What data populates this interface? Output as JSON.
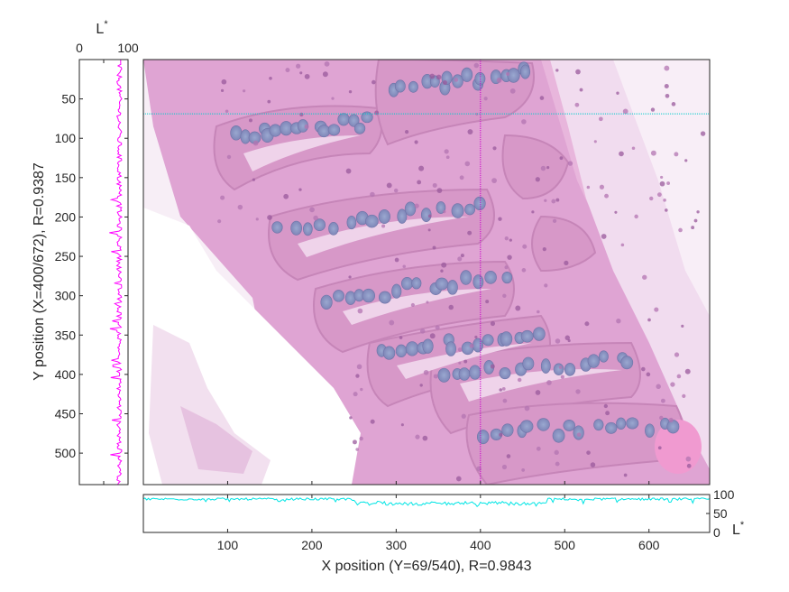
{
  "chart_data": [
    {
      "type": "image",
      "name": "main-image",
      "xlim": [
        0,
        672
      ],
      "ylim": [
        0,
        540
      ],
      "crosshair": {
        "x": 400,
        "y": 69
      },
      "colors": {
        "vertical": "#cc00cc",
        "horizontal": "#00cccc"
      }
    },
    {
      "type": "line",
      "name": "left-profile",
      "orientation": "vertical",
      "title": "L*",
      "xlim": [
        0,
        100
      ],
      "xticks": [
        0,
        100
      ],
      "ylim": [
        0,
        540
      ],
      "yticks": [
        50,
        100,
        150,
        200,
        250,
        300,
        350,
        400,
        450,
        500
      ],
      "ylabel": "Y position (X=400/672), R=0.9387",
      "color": "#ff00ff",
      "baseline": 82,
      "variation": 10
    },
    {
      "type": "line",
      "name": "bottom-profile",
      "orientation": "horizontal",
      "ylabel": "L*",
      "ylim": [
        0,
        100
      ],
      "yticks": [
        0,
        50,
        100
      ],
      "xlim": [
        0,
        672
      ],
      "xticks": [
        100,
        200,
        300,
        400,
        500,
        600
      ],
      "xlabel": "X position (Y=69/540), R=0.9843",
      "color": "#00e5e5",
      "baseline": 88,
      "variation": 6
    }
  ],
  "icons": {
    "tissue": "histology-image"
  }
}
